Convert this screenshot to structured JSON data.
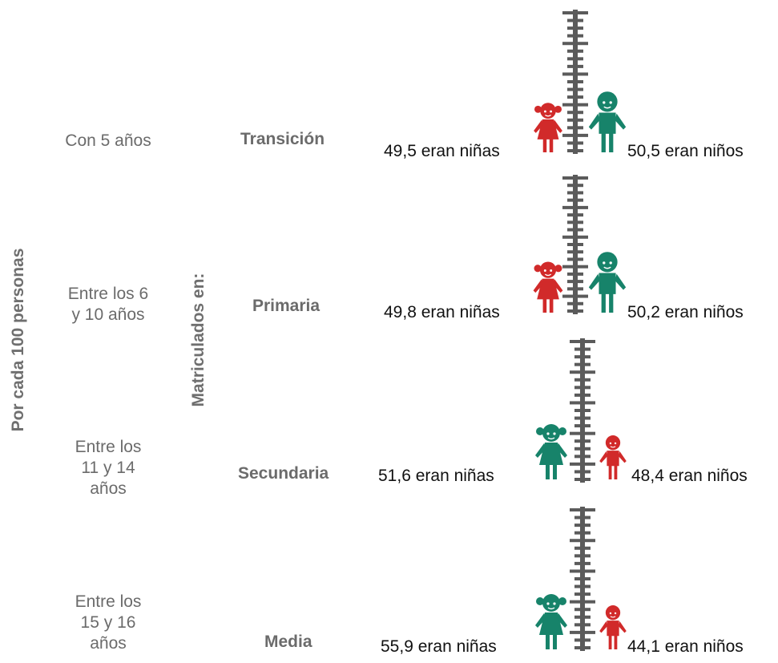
{
  "labels": {
    "per_100": "Por cada 100 personas",
    "enrolled": "Matriculados en:",
    "girls_suffix": "eran niñas",
    "boys_suffix": "eran niños"
  },
  "rows": [
    {
      "age": [
        "Con 5 años"
      ],
      "level": "Transición",
      "girls_text": "49,5",
      "boys_text": "50,5"
    },
    {
      "age": [
        "Entre los 6",
        "y 10 años"
      ],
      "level": "Primaria",
      "girls_text": "49,8",
      "boys_text": "50,2"
    },
    {
      "age": [
        "Entre los",
        "11 y 14",
        "años"
      ],
      "level": "Secundaria",
      "girls_text": "51,6",
      "boys_text": "48,4"
    },
    {
      "age": [
        "Entre los",
        "15 y 16",
        "años"
      ],
      "level": "Media",
      "girls_text": "55,9",
      "boys_text": "44,1"
    }
  ],
  "colors": {
    "red": "#d12a2a",
    "green": "#17836a",
    "ruler": "#5b5b5b",
    "text": "#111111",
    "label": "#6b6b6b"
  },
  "chart_data": {
    "type": "pictogram",
    "categories": [
      "Transición",
      "Primaria",
      "Secundaria",
      "Media"
    ],
    "series": [
      {
        "name": "niñas",
        "values": [
          49.5,
          49.8,
          51.6,
          55.9
        ]
      },
      {
        "name": "niños",
        "values": [
          50.5,
          50.2,
          48.4,
          44.1
        ]
      }
    ]
  }
}
